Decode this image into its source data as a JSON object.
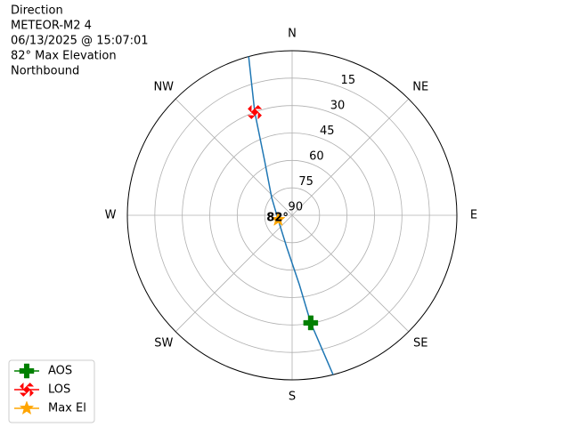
{
  "chart_data": {
    "type": "polar",
    "title_lines": [
      "Direction",
      "METEOR-M2 4",
      "06/13/2025 @ 15:07:01",
      "82° Max Elevation",
      "Northbound"
    ],
    "ylim": [
      90,
      0
    ],
    "yticks": [
      90,
      75,
      60,
      45,
      30,
      15
    ],
    "xticks": [
      {
        "value": 0,
        "label": "N"
      },
      {
        "value": 45,
        "label": "NE"
      },
      {
        "value": 90,
        "label": "E"
      },
      {
        "value": 135,
        "label": "SE"
      },
      {
        "value": 180,
        "label": "S"
      },
      {
        "value": 225,
        "label": "SW"
      },
      {
        "value": 270,
        "label": "W"
      },
      {
        "value": 315,
        "label": "NW"
      }
    ],
    "grid": true,
    "track": {
      "color": "#1f77b4",
      "azimuth": [
        344.7,
        340.1,
        333.4,
        311,
        252.6,
        189.5,
        174.1,
        170.2,
        165.6
      ],
      "elevation": [
        0,
        30,
        56.3,
        75.2,
        82,
        72.2,
        51.9,
        30.3,
        0
      ]
    },
    "markers": [
      {
        "name": "AOS",
        "color": "green",
        "symbol": "plus",
        "azimuth": 170.2,
        "elevation": 30.3
      },
      {
        "name": "LOS",
        "color": "red",
        "symbol": "x",
        "azimuth": 340.1,
        "elevation": 30
      },
      {
        "name": "Max El",
        "color": "orange",
        "symbol": "star",
        "azimuth": 252.6,
        "elevation": 82
      }
    ],
    "annotation": "82°",
    "legend": "lower left"
  }
}
